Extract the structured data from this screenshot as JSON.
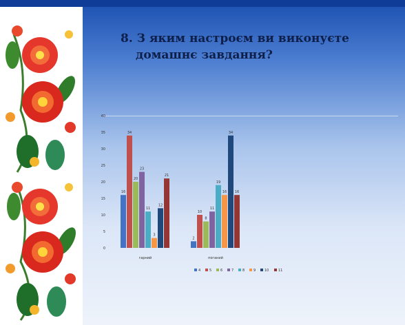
{
  "slide": {
    "title_line1": "8. З яким настроєм ви виконуєте",
    "title_line2": "домашнє завдання?"
  },
  "chart_data": {
    "type": "bar",
    "categories": [
      "гарний",
      "поганий"
    ],
    "ylim": [
      0,
      40
    ],
    "yticks": [
      0,
      5,
      10,
      15,
      20,
      25,
      30,
      35,
      40
    ],
    "grid": false,
    "legend_position": "bottom",
    "series": [
      {
        "name": "4",
        "color": "#4472c4",
        "values": [
          16,
          2
        ]
      },
      {
        "name": "5",
        "color": "#c0504d",
        "values": [
          34,
          10
        ]
      },
      {
        "name": "6",
        "color": "#9bbb59",
        "values": [
          20,
          8
        ]
      },
      {
        "name": "7",
        "color": "#8064a2",
        "values": [
          23,
          11
        ]
      },
      {
        "name": "8",
        "color": "#4bacc6",
        "values": [
          11,
          19
        ]
      },
      {
        "name": "9",
        "color": "#f79646",
        "values": [
          3,
          16
        ]
      },
      {
        "name": "10",
        "color": "#1f497d",
        "values": [
          12,
          34
        ]
      },
      {
        "name": "11",
        "color": "#943634",
        "values": [
          21,
          16
        ]
      }
    ]
  }
}
